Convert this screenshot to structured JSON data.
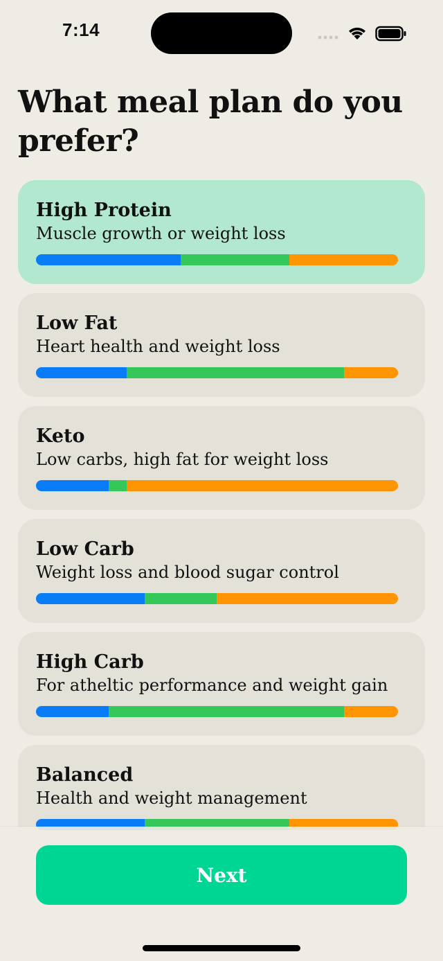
{
  "status": {
    "time": "7:14"
  },
  "title": "What meal plan do you prefer?",
  "colors": {
    "protein": "#0A7CF5",
    "carbs": "#35C759",
    "fat": "#FF9503",
    "selected_bg": "#B2E8CF",
    "card_bg": "#E4E1D9",
    "button_bg": "#00D693"
  },
  "plans": [
    {
      "name": "High Protein",
      "description": "Muscle growth or weight loss",
      "selected": true,
      "macros": [
        40,
        30,
        30
      ]
    },
    {
      "name": "Low Fat",
      "description": "Heart health and weight loss",
      "selected": false,
      "macros": [
        25,
        60,
        15
      ]
    },
    {
      "name": "Keto",
      "description": "Low carbs, high fat for weight loss",
      "selected": false,
      "macros": [
        20,
        5,
        75
      ]
    },
    {
      "name": "Low Carb",
      "description": "Weight loss and blood sugar control",
      "selected": false,
      "macros": [
        30,
        20,
        50
      ]
    },
    {
      "name": "High Carb",
      "description": "For atheltic performance and weight gain",
      "selected": false,
      "macros": [
        20,
        65,
        15
      ]
    },
    {
      "name": "Balanced",
      "description": "Health and weight management",
      "selected": false,
      "macros": [
        30,
        40,
        30
      ]
    }
  ],
  "next_label": "Next"
}
